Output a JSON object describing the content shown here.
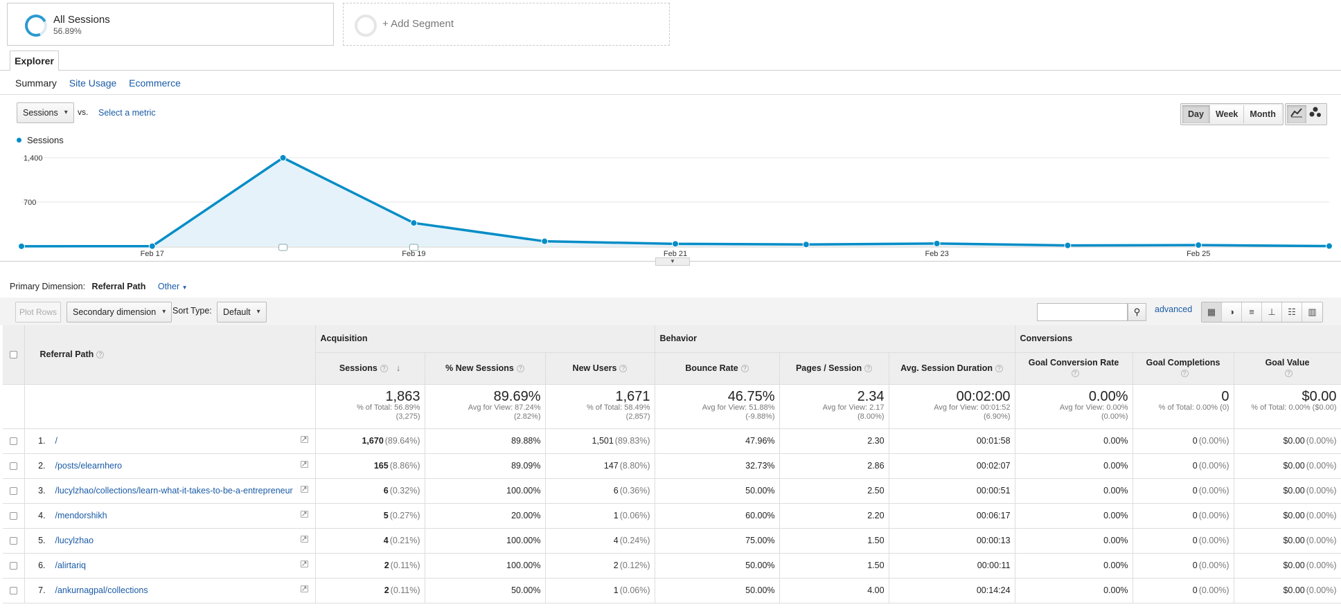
{
  "segments": {
    "active": {
      "name": "All Sessions",
      "pct": "56.89%"
    },
    "add_label": "+ Add Segment"
  },
  "tab_label": "Explorer",
  "subtabs": [
    "Summary",
    "Site Usage",
    "Ecommerce"
  ],
  "metric_select": "Sessions",
  "vs_label": "vs.",
  "select_metric": "Select a metric",
  "granularity": {
    "day": "Day",
    "week": "Week",
    "month": "Month",
    "active": "Day"
  },
  "chart_data": {
    "type": "line",
    "series": [
      {
        "name": "Sessions",
        "color": "#058dc7",
        "values": [
          2,
          3,
          1400,
          370,
          80,
          40,
          30,
          45,
          15,
          20,
          5
        ]
      }
    ],
    "x": [
      "Feb 16",
      "Feb 17",
      "Feb 18",
      "Feb 19",
      "Feb 20",
      "Feb 21",
      "Feb 22",
      "Feb 23",
      "Feb 24",
      "Feb 25",
      "Feb 26"
    ],
    "xticks": [
      "Feb 17",
      "Feb 19",
      "Feb 21",
      "Feb 23",
      "Feb 25"
    ],
    "yticks": [
      "1,400",
      "700"
    ],
    "ylim": [
      0,
      1400
    ],
    "annotation_markers_on": [
      "Feb 18",
      "Feb 19"
    ]
  },
  "primary_dimension": {
    "label": "Primary Dimension:",
    "value": "Referral Path",
    "other": "Other"
  },
  "toolbar": {
    "plot_rows": "Plot Rows",
    "secondary_dimension": "Secondary dimension",
    "sort_type_label": "Sort Type:",
    "sort_type_value": "Default",
    "advanced": "advanced"
  },
  "table": {
    "groups": [
      "Acquisition",
      "Behavior",
      "Conversions"
    ],
    "dimension_header": "Referral Path",
    "columns": [
      "Sessions",
      "% New Sessions",
      "New Users",
      "Bounce Rate",
      "Pages / Session",
      "Avg. Session Duration",
      "Goal Conversion Rate",
      "Goal Completions",
      "Goal Value"
    ],
    "totals": [
      {
        "big": "1,863",
        "sub1": "% of Total: 56.89%",
        "sub2": "(3,275)"
      },
      {
        "big": "89.69%",
        "sub1": "Avg for View: 87.24%",
        "sub2": "(2.82%)"
      },
      {
        "big": "1,671",
        "sub1": "% of Total: 58.49%",
        "sub2": "(2,857)"
      },
      {
        "big": "46.75%",
        "sub1": "Avg for View: 51.88%",
        "sub2": "(-9.88%)"
      },
      {
        "big": "2.34",
        "sub1": "Avg for View: 2.17",
        "sub2": "(8.00%)"
      },
      {
        "big": "00:02:00",
        "sub1": "Avg for View: 00:01:52",
        "sub2": "(6.90%)"
      },
      {
        "big": "0.00%",
        "sub1": "Avg for View: 0.00%",
        "sub2": "(0.00%)"
      },
      {
        "big": "0",
        "sub1": "% of Total: 0.00% (0)",
        "sub2": ""
      },
      {
        "big": "$0.00",
        "sub1": "% of Total: 0.00% ($0.00)",
        "sub2": ""
      }
    ],
    "rows": [
      {
        "n": "1.",
        "path": "/",
        "sessions": "1,670",
        "sessions_pct": "(89.64%)",
        "new_sessions": "89.88%",
        "new_users": "1,501",
        "new_users_pct": "(89.83%)",
        "bounce": "47.96%",
        "pages": "2.30",
        "duration": "00:01:58",
        "gcr": "0.00%",
        "gc": "0",
        "gc_pct": "(0.00%)",
        "gv": "$0.00",
        "gv_pct": "(0.00%)"
      },
      {
        "n": "2.",
        "path": "/posts/elearnhero",
        "sessions": "165",
        "sessions_pct": "(8.86%)",
        "new_sessions": "89.09%",
        "new_users": "147",
        "new_users_pct": "(8.80%)",
        "bounce": "32.73%",
        "pages": "2.86",
        "duration": "00:02:07",
        "gcr": "0.00%",
        "gc": "0",
        "gc_pct": "(0.00%)",
        "gv": "$0.00",
        "gv_pct": "(0.00%)"
      },
      {
        "n": "3.",
        "path": "/lucylzhao/collections/learn-what-it-takes-to-be-a-entrepreneur",
        "sessions": "6",
        "sessions_pct": "(0.32%)",
        "new_sessions": "100.00%",
        "new_users": "6",
        "new_users_pct": "(0.36%)",
        "bounce": "50.00%",
        "pages": "2.50",
        "duration": "00:00:51",
        "gcr": "0.00%",
        "gc": "0",
        "gc_pct": "(0.00%)",
        "gv": "$0.00",
        "gv_pct": "(0.00%)"
      },
      {
        "n": "4.",
        "path": "/mendorshikh",
        "sessions": "5",
        "sessions_pct": "(0.27%)",
        "new_sessions": "20.00%",
        "new_users": "1",
        "new_users_pct": "(0.06%)",
        "bounce": "60.00%",
        "pages": "2.20",
        "duration": "00:06:17",
        "gcr": "0.00%",
        "gc": "0",
        "gc_pct": "(0.00%)",
        "gv": "$0.00",
        "gv_pct": "(0.00%)"
      },
      {
        "n": "5.",
        "path": "/lucylzhao",
        "sessions": "4",
        "sessions_pct": "(0.21%)",
        "new_sessions": "100.00%",
        "new_users": "4",
        "new_users_pct": "(0.24%)",
        "bounce": "75.00%",
        "pages": "1.50",
        "duration": "00:00:13",
        "gcr": "0.00%",
        "gc": "0",
        "gc_pct": "(0.00%)",
        "gv": "$0.00",
        "gv_pct": "(0.00%)"
      },
      {
        "n": "6.",
        "path": "/alirtariq",
        "sessions": "2",
        "sessions_pct": "(0.11%)",
        "new_sessions": "100.00%",
        "new_users": "2",
        "new_users_pct": "(0.12%)",
        "bounce": "50.00%",
        "pages": "1.50",
        "duration": "00:00:11",
        "gcr": "0.00%",
        "gc": "0",
        "gc_pct": "(0.00%)",
        "gv": "$0.00",
        "gv_pct": "(0.00%)"
      },
      {
        "n": "7.",
        "path": "/ankurnagpal/collections",
        "sessions": "2",
        "sessions_pct": "(0.11%)",
        "new_sessions": "50.00%",
        "new_users": "1",
        "new_users_pct": "(0.06%)",
        "bounce": "50.00%",
        "pages": "4.00",
        "duration": "00:14:24",
        "gcr": "0.00%",
        "gc": "0",
        "gc_pct": "(0.00%)",
        "gv": "$0.00",
        "gv_pct": "(0.00%)"
      }
    ]
  }
}
